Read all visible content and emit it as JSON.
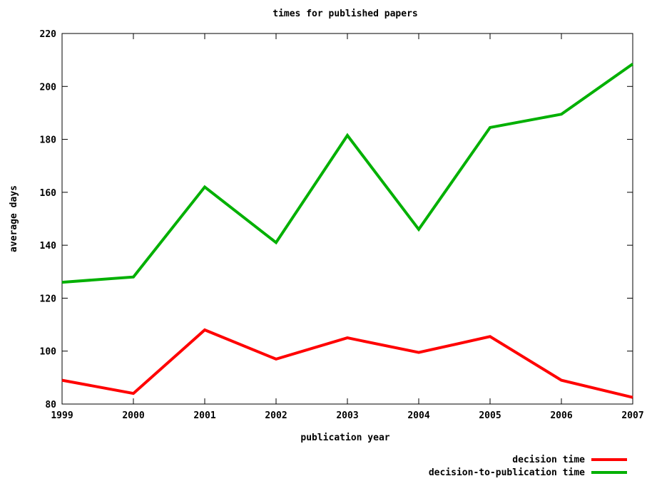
{
  "chart_data": {
    "type": "line",
    "title": "times for published papers",
    "xlabel": "publication year",
    "ylabel": "average days",
    "x": [
      1999,
      2000,
      2001,
      2002,
      2003,
      2004,
      2005,
      2006,
      2007
    ],
    "x_tick_labels": [
      "1999",
      "2000",
      "2001",
      "2002",
      "2003",
      "2004",
      "2005",
      "2006",
      "2007"
    ],
    "y_tick_labels": [
      "80",
      "100",
      "120",
      "140",
      "160",
      "180",
      "200",
      "220"
    ],
    "xlim": [
      1999,
      2007
    ],
    "ylim": [
      80,
      220
    ],
    "y_ticks": [
      80,
      100,
      120,
      140,
      160,
      180,
      200,
      220
    ],
    "grid": false,
    "legend_position": "bottom-right",
    "series": [
      {
        "name": "decision time",
        "color": "#ff0000",
        "values": [
          89,
          84,
          108,
          97,
          105,
          99.5,
          105.5,
          89,
          82.5
        ]
      },
      {
        "name": "decision-to-publication time",
        "color": "#00b000",
        "values": [
          126,
          128,
          162,
          141,
          181.5,
          146,
          184.5,
          189.5,
          208.5
        ]
      }
    ]
  }
}
